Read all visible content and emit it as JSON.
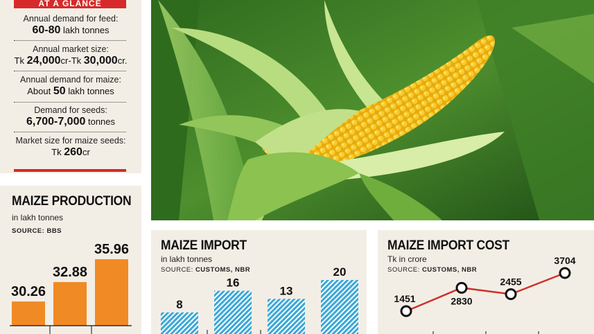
{
  "glance": {
    "header": "AT A GLANCE",
    "items": [
      {
        "label": "Annual demand for feed:",
        "prefix": "",
        "bold": "60-80",
        "suffix": " lakh tonnes"
      },
      {
        "label": "Annual market size:",
        "prefix": "Tk ",
        "bold": "24,000",
        "suffix": "cr-Tk ",
        "bold2": "30,000",
        "suffix2": "cr."
      },
      {
        "label": "Annual demand for maize:",
        "prefix": "About ",
        "bold": "50",
        "suffix": " lakh tonnes"
      },
      {
        "label": "Demand for seeds:",
        "prefix": "",
        "bold": "6,700-7,000",
        "suffix": " tonnes"
      },
      {
        "label": "Market size for maize seeds:",
        "prefix": "Tk ",
        "bold": "260",
        "suffix": "cr"
      }
    ]
  },
  "chart_data": [
    {
      "type": "bar",
      "title": "MAIZE PRODUCTION",
      "subtitle": "in lakh tonnes",
      "source_label": "SOURCE: ",
      "source": "BBS",
      "values": [
        30.26,
        32.88,
        35.96
      ],
      "value_labels": [
        "30.26",
        "32.88",
        "35.96"
      ],
      "ylim": [
        27,
        37
      ],
      "color": "#f08a24"
    },
    {
      "type": "bar",
      "title": "MAIZE IMPORT",
      "subtitle": "in lakh tonnes",
      "source_label": "SOURCE: ",
      "source": "CUSTOMS, NBR",
      "values": [
        8,
        16,
        13,
        20
      ],
      "value_labels": [
        "8",
        "16",
        "13",
        "20"
      ],
      "ylim": [
        0,
        25
      ],
      "color": "#3aa8d8"
    },
    {
      "type": "line",
      "title": "MAIZE IMPORT COST",
      "subtitle": "Tk in crore",
      "source_label": "SOURCE: ",
      "source": "CUSTOMS, NBR",
      "values": [
        1451,
        2830,
        2455,
        3704
      ],
      "value_labels": [
        "1451",
        "2830",
        "2455",
        "3704"
      ],
      "color": "#d0312d"
    }
  ],
  "photo": {
    "icon": "corn-cob-photo"
  }
}
